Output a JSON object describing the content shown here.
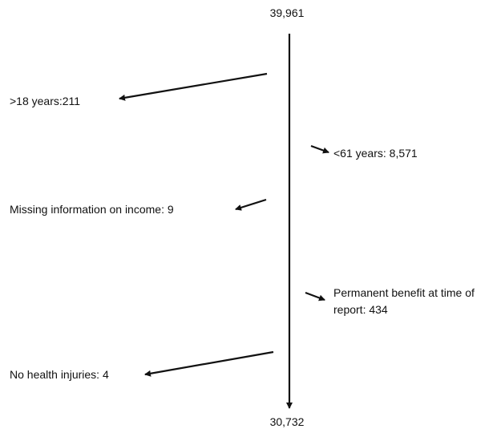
{
  "flow": {
    "start": "39,961",
    "end": "30,732",
    "exclusions": [
      {
        "label": ">18 years:211"
      },
      {
        "label": "<61 years: 8,571"
      },
      {
        "label": "Missing information on income: 9"
      },
      {
        "label": "Permanent benefit at time of report: 434"
      },
      {
        "label": "No health injuries: 4"
      }
    ]
  }
}
